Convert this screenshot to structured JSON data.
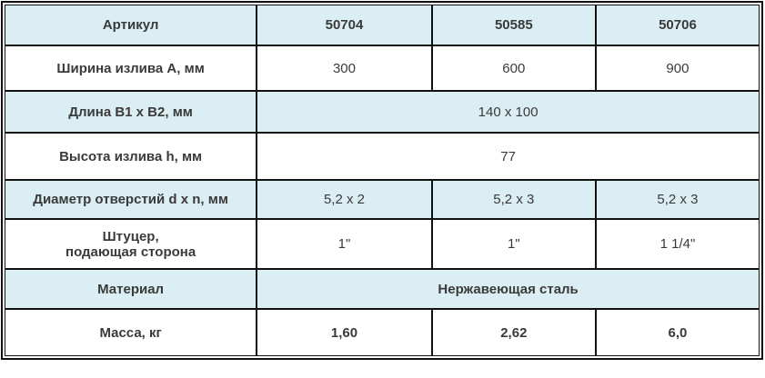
{
  "colors": {
    "row_alt_bg": "#daeef3",
    "article_blue": "#1b3e9c",
    "border": "#111111"
  },
  "table": {
    "header": {
      "label": "Артикул",
      "articles": [
        "50704",
        "50585",
        "50706"
      ]
    },
    "rows": [
      {
        "label": "Ширина излива А, мм",
        "type": "per-column",
        "values": [
          "300",
          "600",
          "900"
        ]
      },
      {
        "label": "Длина B1 x B2, мм",
        "type": "merged",
        "value": "140 x 100"
      },
      {
        "label": "Высота излива h, мм",
        "type": "merged",
        "value": "77"
      },
      {
        "label": "Диаметр отверстий d x n, мм",
        "type": "per-column",
        "values": [
          "5,2 х 2",
          "5,2 х 3",
          "5,2 х 3"
        ]
      },
      {
        "label": "Штуцер,\nподающая сторона",
        "type": "per-column",
        "values": [
          "1\"",
          "1\"",
          "1 1/4\""
        ]
      },
      {
        "label": "Материал",
        "type": "merged",
        "value": "Нержавеющая сталь",
        "value_bold": true
      },
      {
        "label": "Масса, кг",
        "type": "per-column",
        "values": [
          "1,60",
          "2,62",
          "6,0"
        ],
        "value_bold": true
      }
    ]
  }
}
